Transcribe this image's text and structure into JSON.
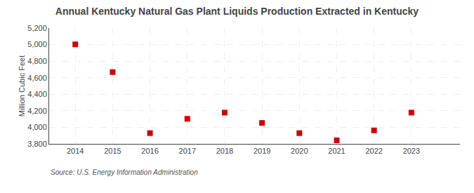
{
  "chart_data": {
    "type": "scatter",
    "title": "Annual Kentucky Natural Gas Plant Liquids Production Extracted in Kentucky",
    "ylabel": "Million Cubic Feet",
    "source": "Source: U.S. Energy Information Administration",
    "x": [
      2014,
      2015,
      2016,
      2017,
      2018,
      2019,
      2020,
      2021,
      2022,
      2023
    ],
    "values": [
      5003,
      4668,
      3930,
      4103,
      4178,
      4053,
      3930,
      3843,
      3963,
      4178
    ],
    "xlim": [
      2013.3,
      2024.3
    ],
    "xticks": [
      2014,
      2015,
      2016,
      2017,
      2018,
      2019,
      2020,
      2021,
      2022,
      2023
    ],
    "ylim": [
      3800,
      5200
    ],
    "yticks": [
      {
        "value": 3800,
        "label": "3,800"
      },
      {
        "value": 4000,
        "label": "4,000"
      },
      {
        "value": 4200,
        "label": "4,200"
      },
      {
        "value": 4400,
        "label": "4,400"
      },
      {
        "value": 4600,
        "label": "4,600"
      },
      {
        "value": 4800,
        "label": "4,800"
      },
      {
        "value": 5000,
        "label": "5,000"
      },
      {
        "value": 5200,
        "label": "5,200"
      }
    ],
    "color": "#cc0000",
    "marker": "square",
    "grid": true
  }
}
